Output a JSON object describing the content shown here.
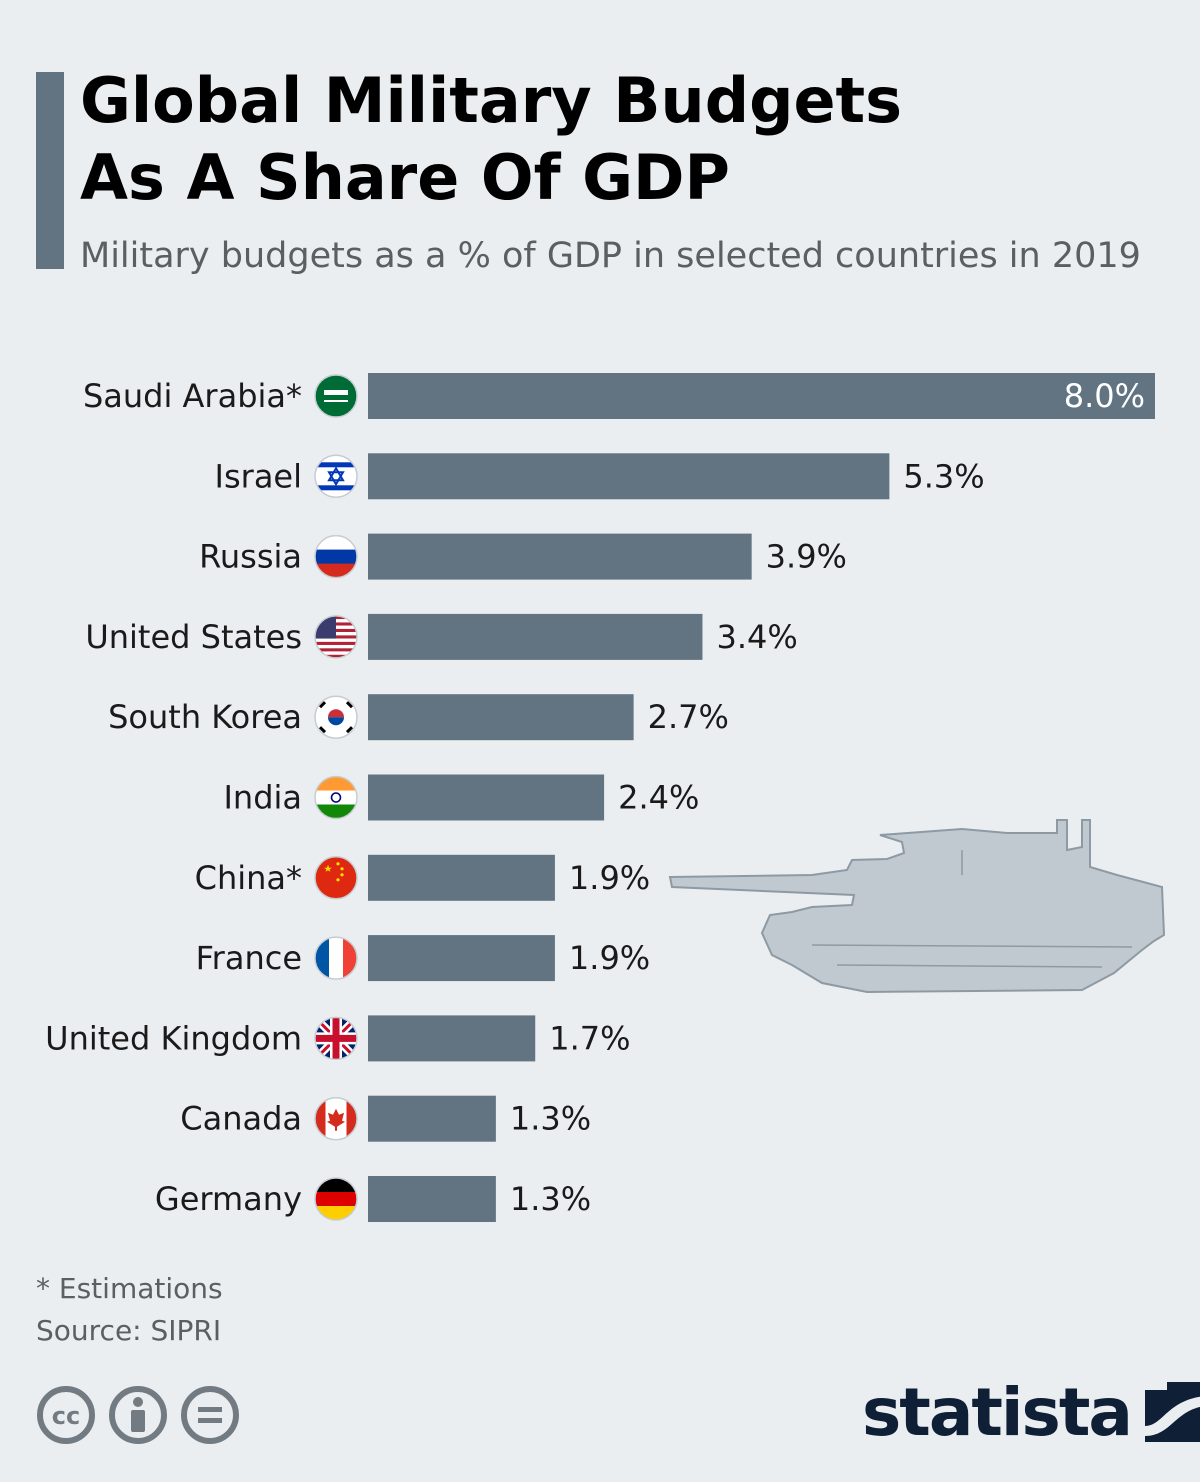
{
  "title": "Global Military Budgets\nAs A Share Of GDP",
  "subtitle": "Military budgets as a % of GDP in selected countries in 2019",
  "chart_data": {
    "type": "bar",
    "orientation": "horizontal",
    "categories": [
      "Saudi Arabia*",
      "Israel",
      "Russia",
      "United States",
      "South Korea",
      "India",
      "China*",
      "France",
      "United Kingdom",
      "Canada",
      "Germany"
    ],
    "values": [
      8.0,
      5.3,
      3.9,
      3.4,
      2.7,
      2.4,
      1.9,
      1.9,
      1.7,
      1.3,
      1.3
    ],
    "value_labels": [
      "8.0%",
      "5.3%",
      "3.9%",
      "3.4%",
      "2.7%",
      "2.4%",
      "1.9%",
      "1.9%",
      "1.7%",
      "1.3%",
      "1.3%"
    ],
    "flags": [
      "saudi-arabia",
      "israel",
      "russia",
      "united-states",
      "south-korea",
      "india",
      "china",
      "france",
      "united-kingdom",
      "canada",
      "germany"
    ],
    "xlim": [
      0,
      8.0
    ],
    "bar_color": "#627482",
    "grid": false,
    "legend": "none"
  },
  "footnote": "* Estimations",
  "source": "Source: SIPRI",
  "license_icons": [
    "cc-icon",
    "attribution-icon",
    "no-derivatives-icon"
  ],
  "brand": "statista",
  "colors": {
    "background": "#eaeef1",
    "accent": "#627482",
    "brand": "#0e1f36",
    "muted_text": "#5a5f63",
    "tank": "#c1c9d0"
  }
}
